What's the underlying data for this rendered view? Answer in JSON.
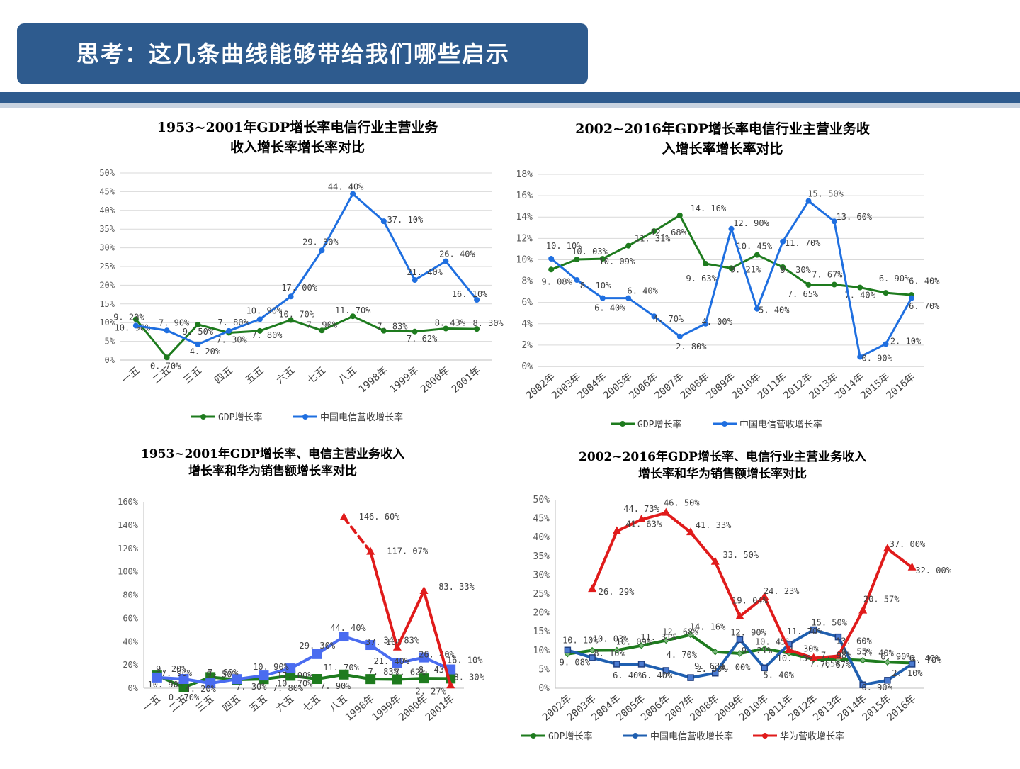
{
  "header": {
    "title": "思考：这几条曲线能够带给我们哪些启示"
  },
  "colors": {
    "gdp": "#1e7b1e",
    "telecom": "#1f6fe0",
    "telecom_dark": "#1f5fb0",
    "huawei": "#e01b1b",
    "band": "#2e5b8e"
  },
  "chart_data": [
    {
      "type": "line",
      "title_lines": [
        "1953~2001年GDP增长率电信行业主营业务",
        "收入增长率增长率对比"
      ],
      "categories": [
        "一五",
        "二五",
        "三五",
        "四五",
        "五五",
        "六五",
        "七五",
        "八五",
        "1998年",
        "1999年",
        "2000年",
        "2001年"
      ],
      "y_ticks": [
        "0%",
        "5%",
        "10%",
        "15%",
        "20%",
        "25%",
        "30%",
        "35%",
        "40%",
        "45%",
        "50%"
      ],
      "ylim": [
        0,
        50
      ],
      "grid": true,
      "legend_position": "bottom",
      "series": [
        {
          "name": "GDP增长率",
          "color": "#1e7b1e",
          "values": [
            10.9,
            0.7,
            9.5,
            7.3,
            7.8,
            10.7,
            7.9,
            11.7,
            7.83,
            7.62,
            8.43,
            8.3
          ],
          "labels": [
            "10. 90%",
            "0. 70%",
            "9. 50%",
            "7. 30%",
            "7. 80%",
            "10. 70%",
            "7. 90%",
            "11. 70%",
            "7. 83%",
            "7. 62%",
            "8. 43%",
            "8. 30%"
          ]
        },
        {
          "name": "中国电信营收增长率",
          "color": "#1f6fe0",
          "values": [
            9.2,
            7.9,
            4.2,
            7.8,
            10.9,
            17.0,
            29.3,
            44.4,
            37.1,
            21.4,
            26.4,
            16.1
          ],
          "labels": [
            "9. 20%",
            "7. 90%",
            "4. 20%",
            "7. 80%",
            "10. 90%",
            "17. 00%",
            "29. 30%",
            "44. 40%",
            "37. 10%",
            "21. 40%",
            "26. 40%",
            "16. 10%"
          ]
        }
      ]
    },
    {
      "type": "line",
      "title_lines": [
        "2002~2016年GDP增长率电信行业主营业务收",
        "入增长率增长率对比"
      ],
      "categories": [
        "2002年",
        "2003年",
        "2004年",
        "2005年",
        "2006年",
        "2007年",
        "2008年",
        "2009年",
        "2010年",
        "2011年",
        "2012年",
        "2013年",
        "2014年",
        "2015年",
        "2016年"
      ],
      "y_ticks": [
        "0%",
        "2%",
        "4%",
        "6%",
        "8%",
        "10%",
        "12%",
        "14%",
        "16%",
        "18%"
      ],
      "ylim": [
        0,
        18
      ],
      "grid": true,
      "legend_position": "bottom",
      "series": [
        {
          "name": "GDP增长率",
          "color": "#1e7b1e",
          "values": [
            9.08,
            10.03,
            10.09,
            11.31,
            12.68,
            14.16,
            9.63,
            9.21,
            10.45,
            9.3,
            7.65,
            7.67,
            7.4,
            6.9,
            6.7
          ],
          "labels": [
            "9. 08%",
            "10. 03%",
            "10. 09%",
            "11. 31%",
            "12. 68%",
            "14. 16%",
            "9. 63%",
            "9. 21%",
            "10. 45%",
            "9. 30%",
            "7. 65%",
            "7. 67%",
            "7. 40%",
            "6. 90%",
            "6. 70%"
          ]
        },
        {
          "name": "中国电信营收增长率",
          "color": "#1f6fe0",
          "values": [
            10.1,
            8.1,
            6.4,
            6.4,
            4.7,
            2.8,
            4.0,
            12.9,
            5.4,
            11.7,
            15.5,
            13.6,
            0.9,
            2.1,
            6.4
          ],
          "labels": [
            "10. 10%",
            "8. 10%",
            "6. 40%",
            "6. 40%",
            "4. 70%",
            "2. 80%",
            "4. 00%",
            "12. 90%",
            "5. 40%",
            "11. 70%",
            "15. 50%",
            "13. 60%",
            "0. 90%",
            "2. 10%",
            "6. 40%"
          ]
        }
      ]
    },
    {
      "type": "line",
      "title_lines": [
        "1953~2001年GDP增长率、电信主营业务收入",
        "增长率和华为销售额增长率对比"
      ],
      "categories": [
        "一五",
        "二五",
        "三五",
        "四五",
        "五五",
        "六五",
        "七五",
        "八五",
        "1998年",
        "1999年",
        "2000年",
        "2001年"
      ],
      "y_ticks": [
        "0%",
        "20%",
        "40%",
        "60%",
        "80%",
        "100%",
        "120%",
        "140%",
        "160%"
      ],
      "ylim": [
        0,
        160
      ],
      "grid": false,
      "series": [
        {
          "name": "GDP增长率",
          "color": "#1e7b1e",
          "values": [
            10.9,
            0.7,
            9.5,
            7.3,
            7.8,
            10.7,
            7.9,
            11.7,
            7.83,
            7.62,
            8.43,
            8.3
          ],
          "labels": [
            "10. 90%",
            "0. 70%",
            "9. 50%",
            "7. 30%",
            "7. 80%",
            "10. 70%",
            "7. 90%",
            "11. 70%",
            "7. 83%",
            "7. 62%",
            "8. 43%",
            "8. 30%"
          ]
        },
        {
          "name": "中国电信营收增长率",
          "color": "#4a6cf0",
          "values": [
            9.2,
            7.9,
            4.2,
            7.8,
            10.9,
            17.0,
            29.3,
            44.4,
            37.1,
            21.4,
            26.4,
            16.1
          ],
          "labels": [
            "9. 20%",
            "7. 90%",
            "4. 20%",
            "7. 80%",
            "10. 90%",
            "17. 00%",
            "29. 30%",
            "44. 40%",
            "37. 10%",
            "21. 40%",
            "26. 40%",
            "16. 10%"
          ]
        },
        {
          "name": "华为营收增长率",
          "color": "#e01b1b",
          "values": [
            null,
            null,
            null,
            null,
            null,
            null,
            null,
            146.6,
            117.07,
            34.83,
            83.33,
            2.27
          ],
          "labels": [
            "",
            "",
            "",
            "",
            "",
            "",
            "",
            "146. 60%",
            "117. 07%",
            "34. 83%",
            "83. 33%",
            "2. 27%"
          ]
        }
      ]
    },
    {
      "type": "line",
      "title_lines": [
        "2002~2016年GDP增长率、电信行业主营业务收入",
        "增长率和华为销售额增长率对比"
      ],
      "categories": [
        "2002年",
        "2003年",
        "2004年",
        "2005年",
        "2006年",
        "2007年",
        "2008年",
        "2009年",
        "2010年",
        "2011年",
        "2012年",
        "2013年",
        "2014年",
        "2015年",
        "2016年"
      ],
      "y_ticks": [
        "0%",
        "5%",
        "10%",
        "15%",
        "20%",
        "25%",
        "30%",
        "35%",
        "40%",
        "45%",
        "50%"
      ],
      "ylim": [
        0,
        50
      ],
      "grid": false,
      "legend_position": "bottom",
      "series": [
        {
          "name": "GDP增长率",
          "color": "#1e7b1e",
          "values": [
            9.08,
            10.03,
            10.09,
            11.31,
            12.68,
            14.16,
            9.63,
            9.21,
            10.45,
            9.3,
            7.65,
            7.67,
            7.4,
            6.9,
            6.7
          ],
          "labels": [
            "9. 08%",
            "10. 03%",
            "10. 09%",
            "11. 31%",
            "12. 68%",
            "14. 16%",
            "9. 63%",
            "9. 21%",
            "10. 45%",
            "9. 30%",
            "7. 65%",
            "7. 67%",
            "7. 40%",
            "6. 90%",
            "6. 70%"
          ]
        },
        {
          "name": "中国电信营收增长率",
          "color": "#1f5fb0",
          "values": [
            10.1,
            8.1,
            6.4,
            6.4,
            4.7,
            2.8,
            4.0,
            12.9,
            5.4,
            11.7,
            15.5,
            13.6,
            0.9,
            2.1,
            6.4
          ],
          "labels": [
            "10. 10%",
            "8. 10%",
            "6. 40%",
            "6. 40%",
            "4. 70%",
            "2. 80%",
            "4. 00%",
            "12. 90%",
            "5. 40%",
            "11. 70%",
            "15. 50%",
            "13. 60%",
            "0. 90%",
            "2. 10%",
            "6. 40%"
          ]
        },
        {
          "name": "华为营收增长率",
          "color": "#e01b1b",
          "values": [
            null,
            26.29,
            41.63,
            44.73,
            46.5,
            41.33,
            33.5,
            19.04,
            24.23,
            10.13,
            7.98,
            8.55,
            20.57,
            37.0,
            32.0
          ],
          "labels": [
            "",
            "26. 29%",
            "41. 63%",
            "44. 73%",
            "46. 50%",
            "41. 33%",
            "33. 50%",
            "19. 04%",
            "24. 23%",
            "10. 13%",
            "7. 98%",
            "8. 55%",
            "20. 57%",
            "37. 00%",
            "32. 00%"
          ]
        }
      ]
    }
  ]
}
